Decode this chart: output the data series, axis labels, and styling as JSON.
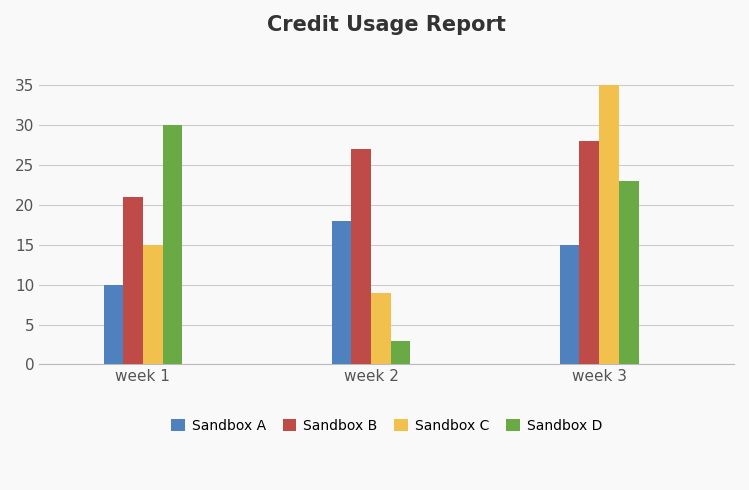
{
  "title": "Credit Usage Report",
  "title_fontsize": 15,
  "title_fontweight": "bold",
  "categories": [
    "week 1",
    "week 2",
    "week 3"
  ],
  "series": {
    "Sandbox A": [
      10,
      18,
      15
    ],
    "Sandbox B": [
      21,
      27,
      28
    ],
    "Sandbox C": [
      15,
      9,
      35
    ],
    "Sandbox D": [
      30,
      3,
      23
    ]
  },
  "colors": {
    "Sandbox A": "#4e81bd",
    "Sandbox B": "#be4b48",
    "Sandbox C": "#f2c04c",
    "Sandbox D": "#6aaa45"
  },
  "ylim": [
    0,
    40
  ],
  "yticks": [
    0,
    5,
    10,
    15,
    20,
    25,
    30,
    35
  ],
  "background_color": "#f9f9f9",
  "plot_bg_color": "#f9f9f9",
  "grid_color": "#cccccc",
  "bar_width": 0.19,
  "group_positions": [
    1.0,
    3.2,
    5.4
  ],
  "legend_fontsize": 10,
  "tick_fontsize": 11,
  "category_fontsize": 11
}
